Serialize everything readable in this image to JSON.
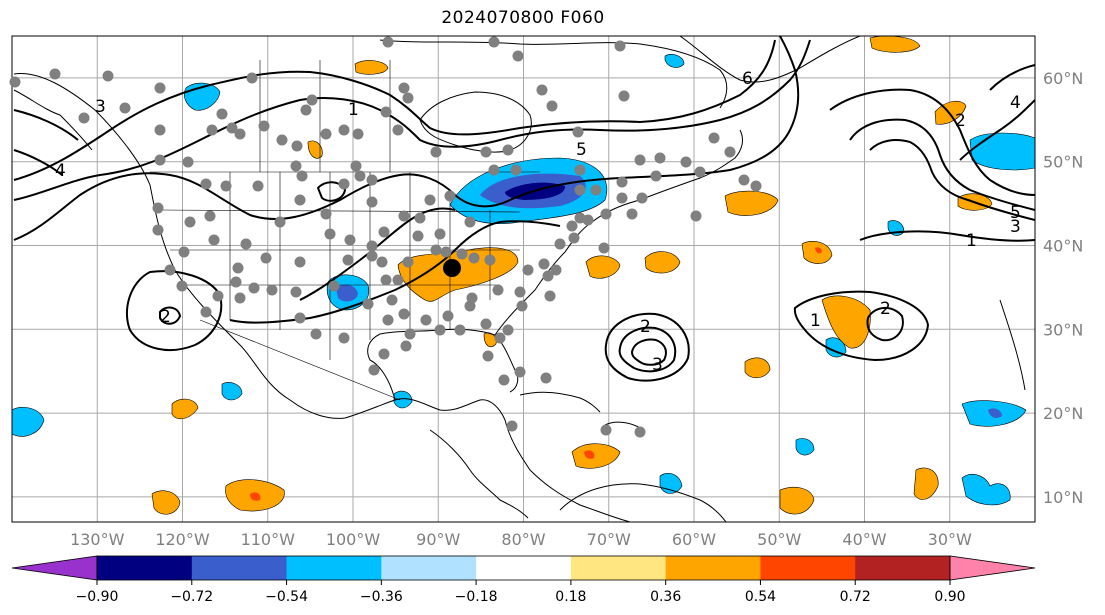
{
  "title": "2024070800 F060",
  "map": {
    "projection": "PlateCarree",
    "lon_range": [
      -140,
      -20
    ],
    "lat_range": [
      7,
      65
    ],
    "lon_ticks": [
      "130°W",
      "120°W",
      "110°W",
      "100°W",
      "90°W",
      "80°W",
      "70°W",
      "60°W",
      "50°W",
      "40°W",
      "30°W"
    ],
    "lat_ticks": [
      "10°N",
      "20°N",
      "30°N",
      "40°N",
      "50°N",
      "60°N"
    ],
    "gridlines": true,
    "coastline_color": "#000000",
    "contour_color": "#000000",
    "station_marker_color": "#808080",
    "highlight_marker_color": "#000000",
    "contour_labels": [
      "1",
      "2",
      "3",
      "4",
      "5",
      "6"
    ]
  },
  "colorbar": {
    "extend": "both",
    "tick_labels": [
      "−0.90",
      "−0.72",
      "−0.54",
      "−0.36",
      "−0.18",
      "0.18",
      "0.36",
      "0.54",
      "0.72",
      "0.90"
    ],
    "colors": [
      "#9932cc",
      "#000080",
      "#3a5fcd",
      "#00bfff",
      "#b0e2ff",
      "#ffffff",
      "#ffe680",
      "#ffa500",
      "#ff4500",
      "#b22222",
      "#ff82ab"
    ]
  }
}
